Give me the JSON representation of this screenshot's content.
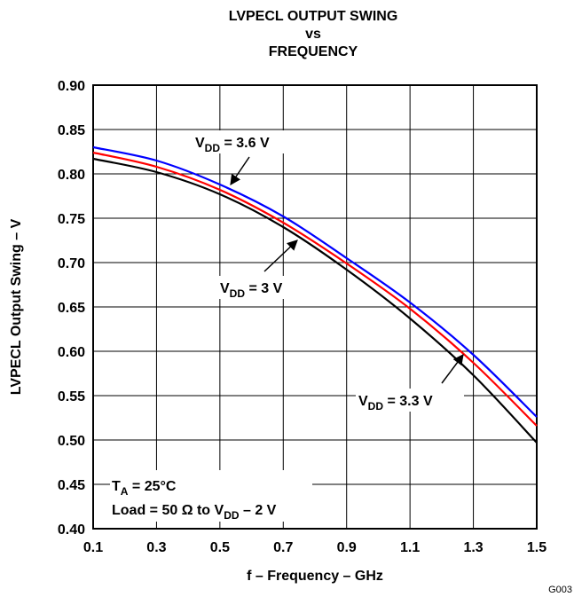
{
  "chart_data": {
    "type": "line",
    "title_lines": [
      "LVPECL OUTPUT SWING",
      "vs",
      "FREQUENCY"
    ],
    "xlabel": "f – Frequency – GHz",
    "ylabel": "LVPECL Output Swing – V",
    "xlim": [
      0.1,
      1.5
    ],
    "ylim": [
      0.4,
      0.9
    ],
    "x_ticks": [
      0.1,
      0.3,
      0.5,
      0.7,
      0.9,
      1.1,
      1.3,
      1.5
    ],
    "y_ticks": [
      0.4,
      0.45,
      0.5,
      0.55,
      0.6,
      0.65,
      0.7,
      0.75,
      0.8,
      0.85,
      0.9
    ],
    "x_tick_labels": [
      "0.1",
      "0.3",
      "0.5",
      "0.7",
      "0.9",
      "1.1",
      "1.3",
      "1.5"
    ],
    "y_tick_labels": [
      "0.40",
      "0.45",
      "0.50",
      "0.55",
      "0.60",
      "0.65",
      "0.70",
      "0.75",
      "0.80",
      "0.85",
      "0.90"
    ],
    "grid": true,
    "series": [
      {
        "color": "#0000ff",
        "x": [
          0.1,
          0.3,
          0.5,
          0.7,
          0.9,
          1.1,
          1.3,
          1.5
        ],
        "y": [
          0.83,
          0.815,
          0.788,
          0.752,
          0.705,
          0.655,
          0.596,
          0.526
        ]
      },
      {
        "color": "#ff0000",
        "x": [
          0.1,
          0.3,
          0.5,
          0.7,
          0.9,
          1.1,
          1.3,
          1.5
        ],
        "y": [
          0.824,
          0.808,
          0.782,
          0.745,
          0.699,
          0.648,
          0.587,
          0.516
        ]
      },
      {
        "color": "#000000",
        "x": [
          0.1,
          0.3,
          0.5,
          0.7,
          0.9,
          1.1,
          1.3,
          1.5
        ],
        "y": [
          0.817,
          0.802,
          0.777,
          0.74,
          0.692,
          0.637,
          0.573,
          0.497
        ]
      }
    ],
    "annotations": {
      "vdd36": {
        "base": "V",
        "sub": "DD",
        "rest": " = 3.6 V"
      },
      "vdd3": {
        "base": "V",
        "sub": "DD",
        "rest": " = 3 V"
      },
      "vdd33": {
        "base": "V",
        "sub": "DD",
        "rest": " = 3.3 V"
      },
      "ta": {
        "base": "T",
        "sub": "A",
        "rest": " = 25°C"
      },
      "load": {
        "base": "Load = 50 Ω to V",
        "sub": "DD",
        "rest": " – 2 V"
      }
    },
    "figure_id": "G003"
  }
}
